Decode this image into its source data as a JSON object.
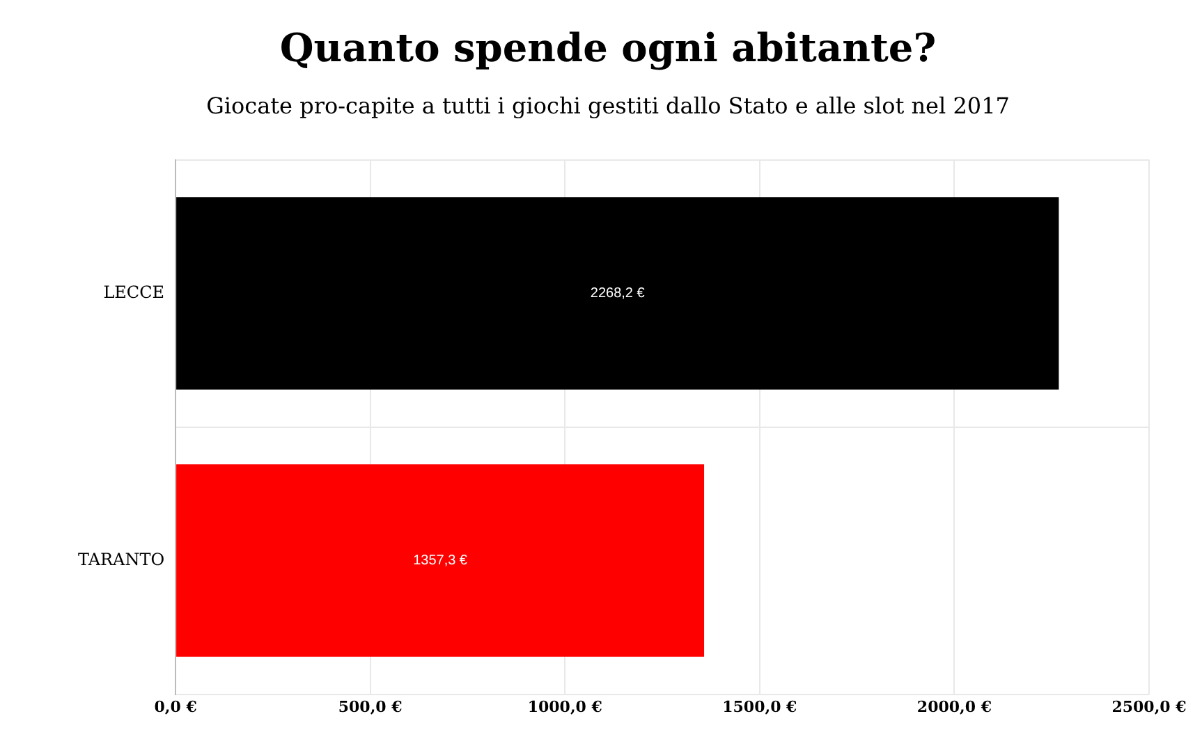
{
  "chart_data": {
    "type": "bar",
    "orientation": "horizontal",
    "title": "Quanto spende ogni abitante?",
    "subtitle": "Giocate pro-capite a tutti i giochi gestiti dallo Stato e alle slot nel 2017",
    "categories": [
      "LECCE",
      "TARANTO"
    ],
    "values": [
      2268.2,
      1357.3
    ],
    "colors": [
      "#000000",
      "#ff0000"
    ],
    "value_labels": [
      "2268,2 €",
      "1357,3 €"
    ],
    "xlim": [
      0,
      2500
    ],
    "xticks": [
      {
        "value": 0,
        "label": "0,0 €"
      },
      {
        "value": 500,
        "label": "500,0 €"
      },
      {
        "value": 1000,
        "label": "1000,0 €"
      },
      {
        "value": 1500,
        "label": "1500,0 €"
      },
      {
        "value": 2000,
        "label": "2000,0 €"
      },
      {
        "value": 2500,
        "label": "2500,0 €"
      }
    ],
    "grid": true,
    "legend": false
  }
}
